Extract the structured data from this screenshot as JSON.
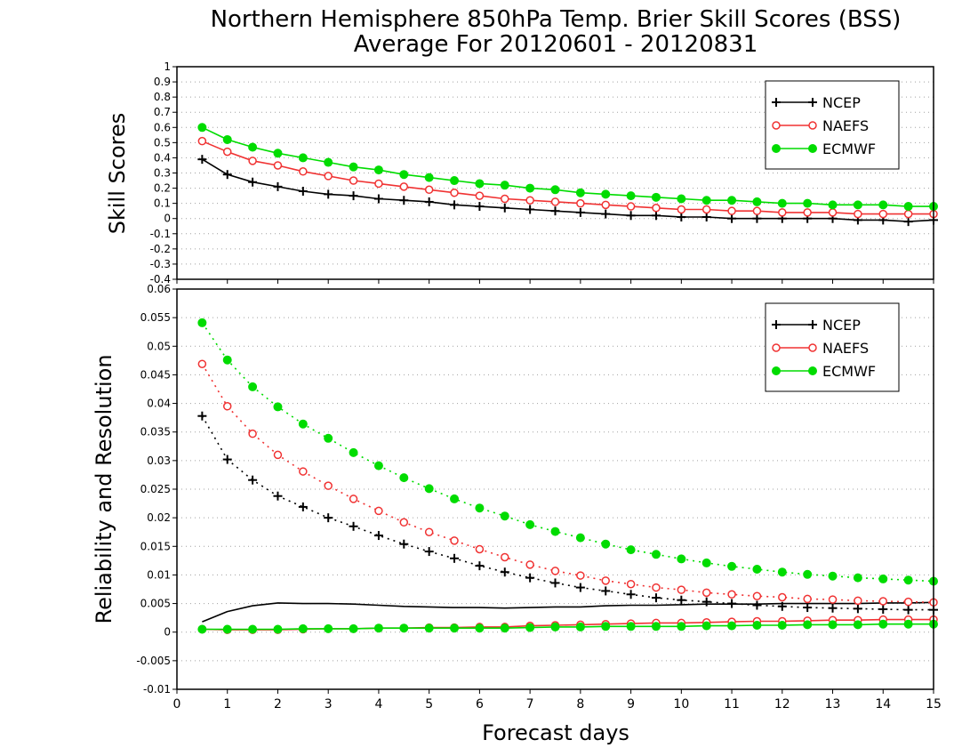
{
  "colors": {
    "NCEP": "#000000",
    "NAEFS": "#f03232",
    "ECMWF": "#00dc00",
    "grid": "#a0a0a0",
    "frame": "#000000"
  },
  "chart_data": {
    "title": "Northern Hemisphere 850hPa Temp. Brier Skill Scores (BSS)",
    "subtitle": "Average For 20120601 - 20120831",
    "xlabel": "Forecast days",
    "xlim": [
      0,
      15
    ],
    "x_ticks": [
      "0",
      "1",
      "2",
      "3",
      "4",
      "5",
      "6",
      "7",
      "8",
      "9",
      "10",
      "11",
      "12",
      "13",
      "14",
      "15"
    ],
    "x": [
      0.5,
      1,
      1.5,
      2,
      2.5,
      3,
      3.5,
      4,
      4.5,
      5,
      5.5,
      6,
      6.5,
      7,
      7.5,
      8,
      8.5,
      9,
      9.5,
      10,
      10.5,
      11,
      11.5,
      12,
      12.5,
      13,
      13.5,
      14,
      14.5,
      15
    ],
    "panels": [
      {
        "type": "line",
        "ylabel": "Skill Scores",
        "ylim": [
          -0.4,
          1
        ],
        "y_ticks": [
          "1",
          "0.9",
          "0.8",
          "0.7",
          "0.6",
          "0.5",
          "0.4",
          "0.3",
          "0.2",
          "0.1",
          "0",
          "-0.1",
          "-0.2",
          "-0.3",
          "-0.4"
        ],
        "grid": true,
        "legend": [
          "NCEP",
          "NAEFS",
          "ECMWF"
        ],
        "legend_position": "top-right",
        "series": [
          {
            "name": "NCEP",
            "marker": "plus",
            "style": "solid",
            "values": [
              0.39,
              0.29,
              0.24,
              0.21,
              0.18,
              0.16,
              0.15,
              0.13,
              0.12,
              0.11,
              0.09,
              0.08,
              0.07,
              0.06,
              0.05,
              0.04,
              0.03,
              0.02,
              0.02,
              0.01,
              0.01,
              0.0,
              0.0,
              0.0,
              0.0,
              0.0,
              -0.01,
              -0.01,
              -0.02,
              -0.01
            ]
          },
          {
            "name": "NAEFS",
            "marker": "open-circle",
            "style": "solid",
            "values": [
              0.51,
              0.44,
              0.38,
              0.35,
              0.31,
              0.28,
              0.25,
              0.23,
              0.21,
              0.19,
              0.17,
              0.15,
              0.13,
              0.12,
              0.11,
              0.1,
              0.09,
              0.08,
              0.07,
              0.06,
              0.06,
              0.05,
              0.05,
              0.04,
              0.04,
              0.04,
              0.03,
              0.03,
              0.03,
              0.03
            ]
          },
          {
            "name": "ECMWF",
            "marker": "filled-circle",
            "style": "solid",
            "values": [
              0.6,
              0.52,
              0.47,
              0.43,
              0.4,
              0.37,
              0.34,
              0.32,
              0.29,
              0.27,
              0.25,
              0.23,
              0.22,
              0.2,
              0.19,
              0.17,
              0.16,
              0.15,
              0.14,
              0.13,
              0.12,
              0.12,
              0.11,
              0.1,
              0.1,
              0.09,
              0.09,
              0.09,
              0.08,
              0.08
            ]
          }
        ]
      },
      {
        "type": "line",
        "ylabel": "Reliability and Resolution",
        "ylim": [
          -0.01,
          0.06
        ],
        "y_ticks": [
          "0.06",
          "0.055",
          "0.05",
          "0.045",
          "0.04",
          "0.035",
          "0.03",
          "0.025",
          "0.02",
          "0.015",
          "0.01",
          "0.005",
          "0",
          "-0.005",
          "-0.01"
        ],
        "grid": true,
        "legend": [
          "NCEP",
          "NAEFS",
          "ECMWF"
        ],
        "legend_position": "top-right",
        "series": [
          {
            "name": "NCEP",
            "marker": "plus",
            "style": "dotted",
            "values": [
              0.0378,
              0.0302,
              0.0266,
              0.0238,
              0.0219,
              0.02,
              0.0185,
              0.0169,
              0.0154,
              0.0141,
              0.0129,
              0.0116,
              0.0105,
              0.0095,
              0.0086,
              0.0078,
              0.0072,
              0.0066,
              0.006,
              0.0056,
              0.0053,
              0.005,
              0.0047,
              0.0045,
              0.0043,
              0.0042,
              0.0041,
              0.004,
              0.0039,
              0.0039
            ]
          },
          {
            "name": "NCEP",
            "marker": "none",
            "style": "solid",
            "values": [
              0.0018,
              0.0036,
              0.0046,
              0.0051,
              0.005,
              0.005,
              0.0049,
              0.0047,
              0.0045,
              0.0044,
              0.0043,
              0.0043,
              0.0042,
              0.0043,
              0.0044,
              0.0044,
              0.0046,
              0.0047,
              0.0047,
              0.0048,
              0.0049,
              0.0049,
              0.0049,
              0.005,
              0.005,
              0.005,
              0.005,
              0.0051,
              0.0051,
              0.0052
            ]
          },
          {
            "name": "NAEFS",
            "marker": "open-circle",
            "style": "dotted",
            "values": [
              0.0469,
              0.0395,
              0.0347,
              0.031,
              0.0281,
              0.0256,
              0.0233,
              0.0212,
              0.0192,
              0.0175,
              0.016,
              0.0145,
              0.0131,
              0.0118,
              0.0107,
              0.0099,
              0.009,
              0.0084,
              0.0078,
              0.0074,
              0.0069,
              0.0066,
              0.0063,
              0.0061,
              0.0058,
              0.0057,
              0.0055,
              0.0054,
              0.0053,
              0.0052
            ]
          },
          {
            "name": "NAEFS",
            "marker": "open-circle",
            "style": "solid",
            "values": [
              0.0005,
              0.0004,
              0.0004,
              0.0004,
              0.0005,
              0.0006,
              0.0006,
              0.0007,
              0.0007,
              0.0008,
              0.0008,
              0.0009,
              0.0009,
              0.0011,
              0.0012,
              0.0013,
              0.0014,
              0.0015,
              0.0016,
              0.0016,
              0.0017,
              0.0018,
              0.0019,
              0.0019,
              0.002,
              0.0021,
              0.0021,
              0.0022,
              0.0022,
              0.0022
            ]
          },
          {
            "name": "ECMWF",
            "marker": "filled-circle",
            "style": "dotted",
            "values": [
              0.0541,
              0.0476,
              0.0429,
              0.0394,
              0.0364,
              0.0339,
              0.0314,
              0.0291,
              0.027,
              0.0251,
              0.0233,
              0.0217,
              0.0203,
              0.0188,
              0.0176,
              0.0165,
              0.0154,
              0.0144,
              0.0136,
              0.0128,
              0.0121,
              0.0115,
              0.011,
              0.0105,
              0.0101,
              0.0098,
              0.0095,
              0.0093,
              0.0091,
              0.0089
            ]
          },
          {
            "name": "ECMWF",
            "marker": "filled-circle",
            "style": "solid",
            "values": [
              0.0005,
              0.0005,
              0.0005,
              0.0005,
              0.0006,
              0.0006,
              0.0006,
              0.0007,
              0.0007,
              0.0007,
              0.0007,
              0.0007,
              0.0007,
              0.0008,
              0.0009,
              0.0009,
              0.001,
              0.001,
              0.001,
              0.001,
              0.0011,
              0.0011,
              0.0012,
              0.0012,
              0.0013,
              0.0013,
              0.0013,
              0.0014,
              0.0014,
              0.0014
            ]
          }
        ]
      }
    ]
  }
}
